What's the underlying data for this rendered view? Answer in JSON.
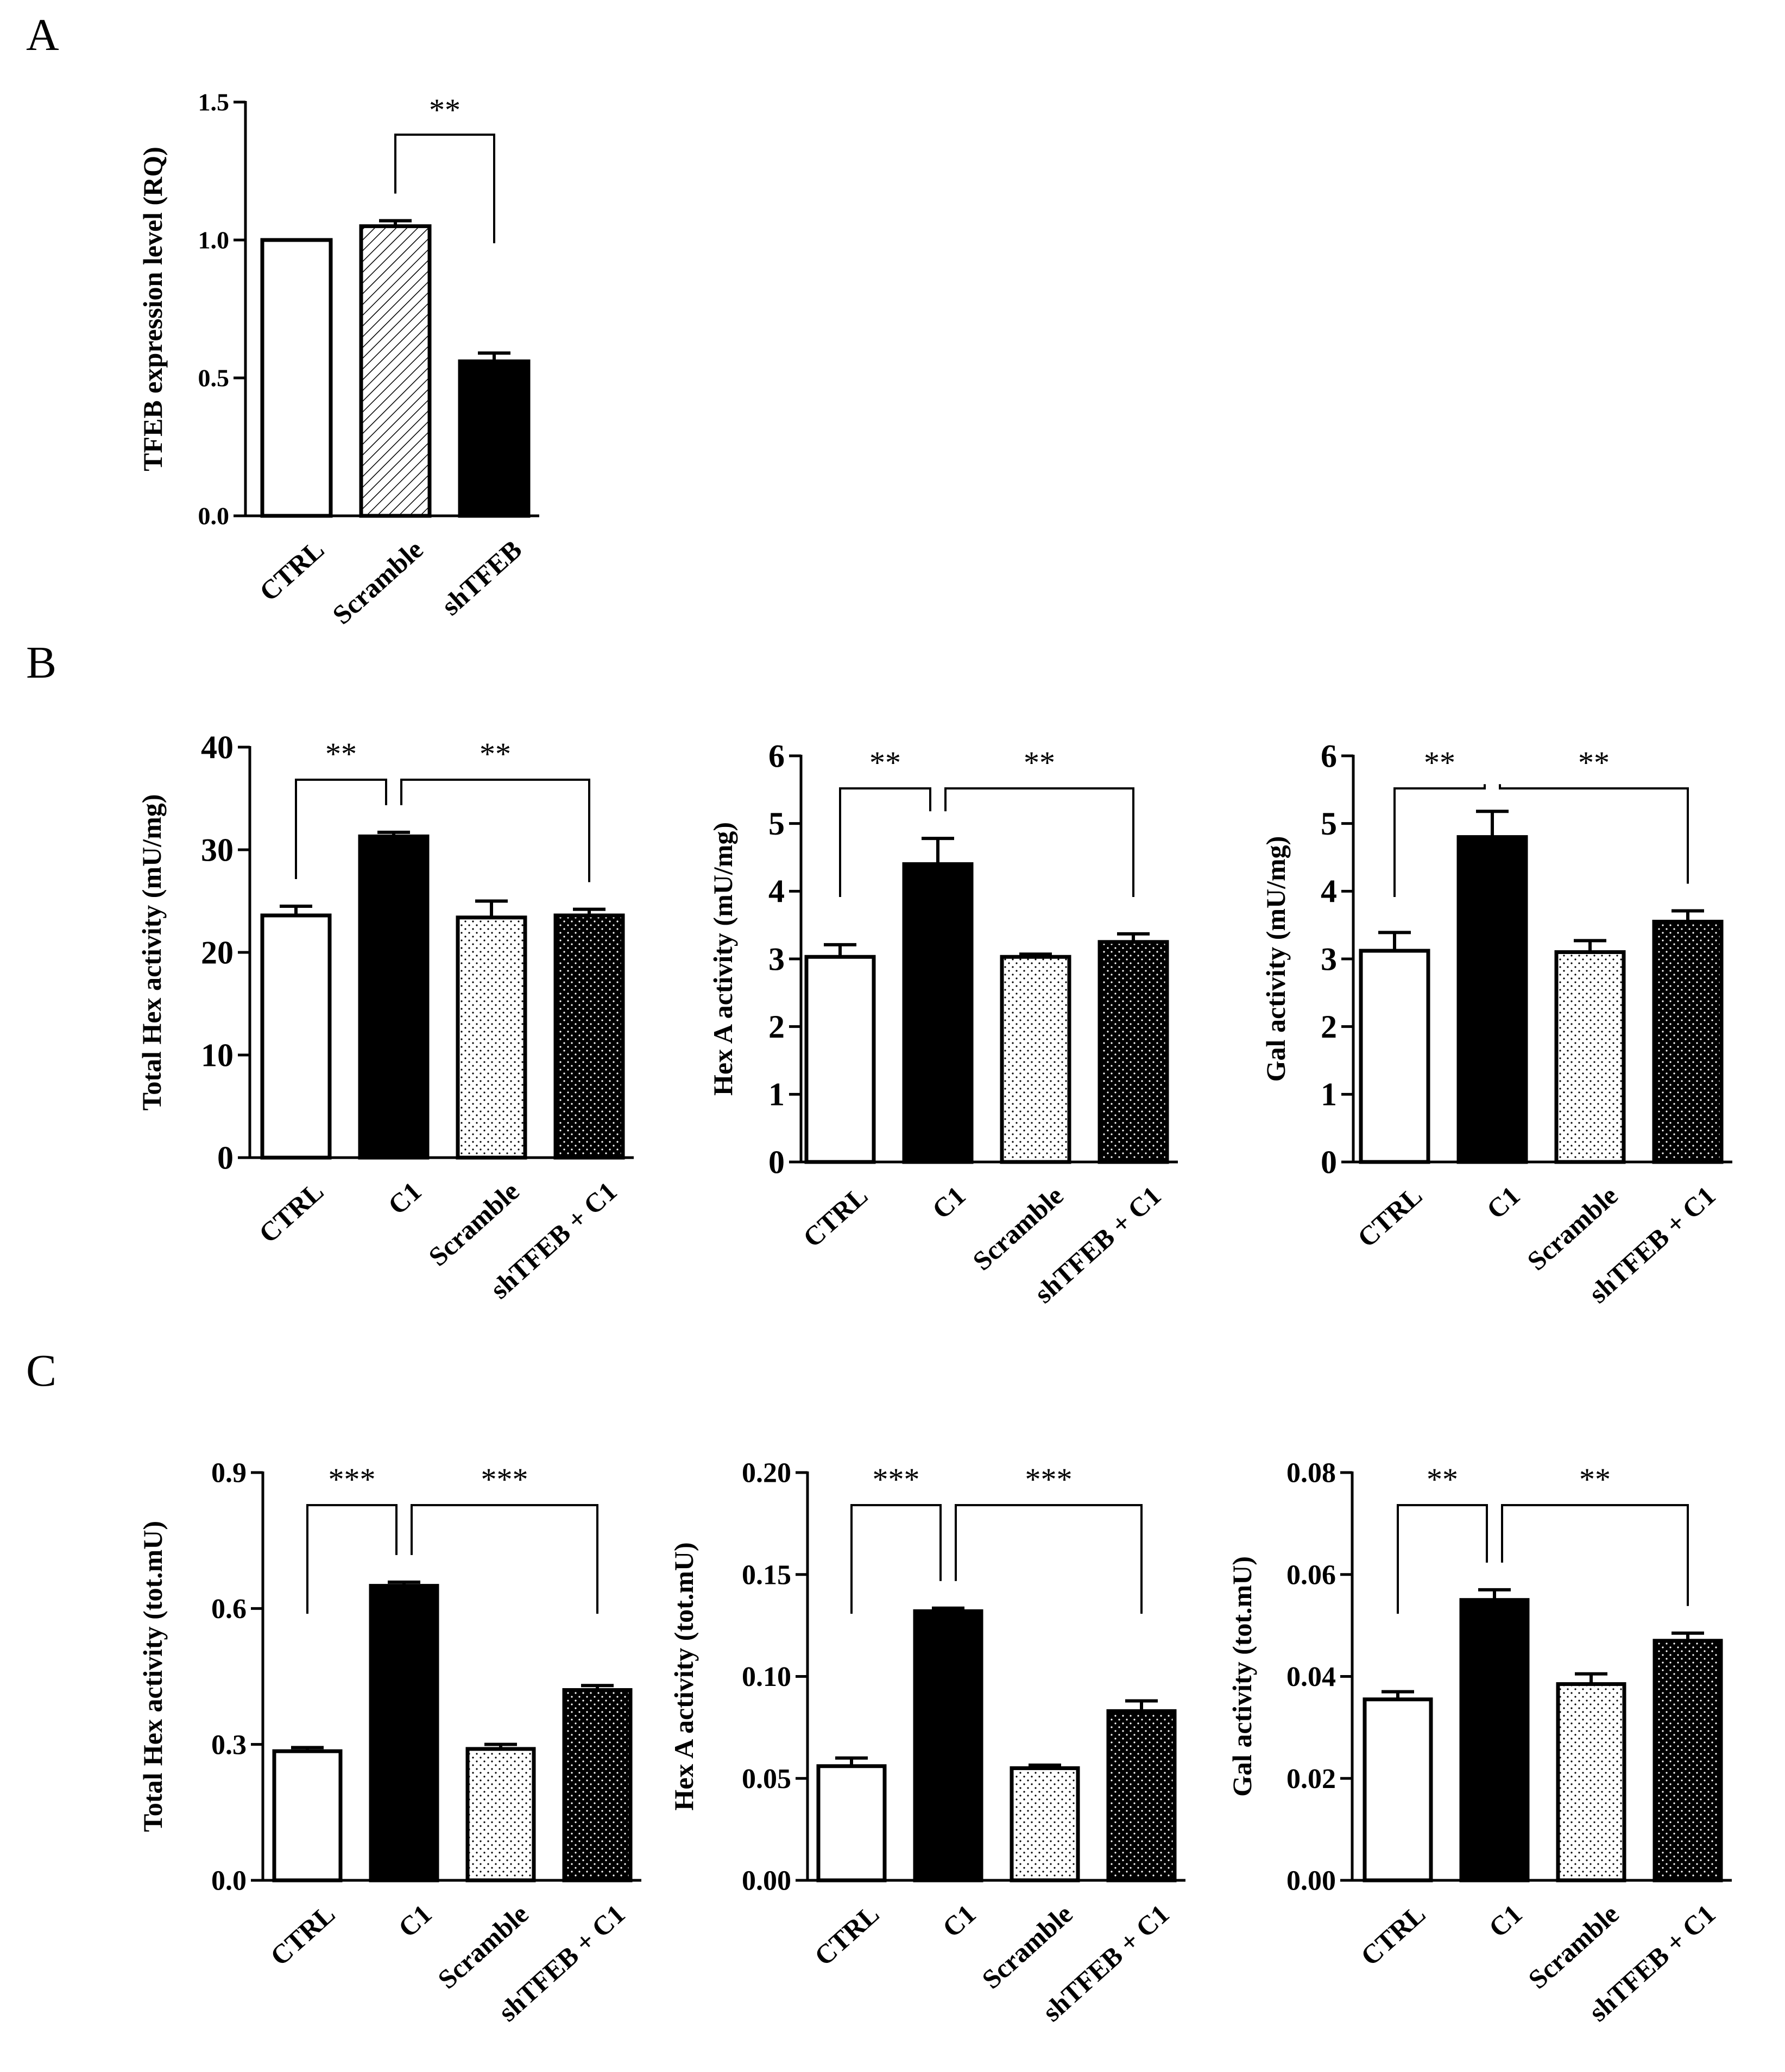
{
  "panels": [
    {
      "letter": "A"
    },
    {
      "letter": "B"
    },
    {
      "letter": "C"
    }
  ],
  "colors": {
    "ink": "#000000",
    "paper": "#ffffff"
  },
  "chart_data": [
    {
      "id": "A",
      "type": "bar",
      "categories": [
        "CTRL",
        "Scramble",
        "shTFEB"
      ],
      "values": [
        1.0,
        1.05,
        0.56
      ],
      "errors": [
        0.0,
        0.02,
        0.03
      ],
      "fills": [
        "white",
        "hatch",
        "black"
      ],
      "ylabel": "TFEB expression level (RQ)",
      "ylim": [
        0,
        1.5
      ],
      "yticks": [
        0.0,
        0.5,
        1.0,
        1.5
      ],
      "ytick_labels": [
        "0.0",
        "0.5",
        "1.0",
        "1.5"
      ],
      "significance": [
        {
          "from": 1,
          "to": 2,
          "label": "**"
        }
      ]
    },
    {
      "id": "B1",
      "type": "bar",
      "categories": [
        "CTRL",
        "C1",
        "Scramble",
        "shTFEB + C1"
      ],
      "values": [
        23.6,
        31.3,
        23.4,
        23.6
      ],
      "errors": [
        0.9,
        0.4,
        1.6,
        0.6
      ],
      "fills": [
        "white",
        "black",
        "light-dots",
        "dark-dots"
      ],
      "ylabel": "Total Hex activity (mU/mg)",
      "ylim": [
        0,
        40
      ],
      "yticks": [
        0,
        10,
        20,
        30,
        40
      ],
      "ytick_labels": [
        "0",
        "10",
        "20",
        "30",
        "40"
      ],
      "significance": [
        {
          "from": 0,
          "to": 1,
          "label": "**"
        },
        {
          "from": 1,
          "to": 3,
          "label": "**"
        }
      ]
    },
    {
      "id": "B2",
      "type": "bar",
      "categories": [
        "CTRL",
        "C1",
        "Scramble",
        "shTFEB + C1"
      ],
      "values": [
        3.03,
        4.4,
        3.03,
        3.25
      ],
      "errors": [
        0.18,
        0.38,
        0.04,
        0.12
      ],
      "fills": [
        "white",
        "black",
        "light-dots",
        "dark-dots"
      ],
      "ylabel": "Hex A activity (mU/mg)",
      "ylim": [
        0,
        6
      ],
      "yticks": [
        0,
        1,
        2,
        3,
        4,
        5,
        6
      ],
      "ytick_labels": [
        "0",
        "1",
        "2",
        "3",
        "4",
        "5",
        "6"
      ],
      "significance": [
        {
          "from": 0,
          "to": 1,
          "label": "**"
        },
        {
          "from": 1,
          "to": 3,
          "label": "**"
        }
      ]
    },
    {
      "id": "B3",
      "type": "bar",
      "categories": [
        "CTRL",
        "C1",
        "Scramble",
        "shTFEB + C1"
      ],
      "values": [
        3.12,
        4.8,
        3.1,
        3.55
      ],
      "errors": [
        0.27,
        0.38,
        0.17,
        0.16
      ],
      "fills": [
        "white",
        "black",
        "light-dots",
        "dark-dots"
      ],
      "ylabel": "Gal activity (mU/mg)",
      "ylim": [
        0,
        6
      ],
      "yticks": [
        0,
        1,
        2,
        3,
        4,
        5,
        6
      ],
      "ytick_labels": [
        "0",
        "1",
        "2",
        "3",
        "4",
        "5",
        "6"
      ],
      "significance": [
        {
          "from": 0,
          "to": 1,
          "label": "**"
        },
        {
          "from": 1,
          "to": 3,
          "label": "**"
        }
      ]
    },
    {
      "id": "C1",
      "type": "bar",
      "categories": [
        "CTRL",
        "C1",
        "Scramble",
        "shTFEB + C1"
      ],
      "values": [
        0.285,
        0.65,
        0.29,
        0.42
      ],
      "errors": [
        0.008,
        0.008,
        0.01,
        0.01
      ],
      "fills": [
        "white",
        "black",
        "light-dots",
        "dark-dots"
      ],
      "ylabel": "Total Hex activity (tot.mU)",
      "ylim": [
        0,
        0.9
      ],
      "yticks": [
        0.0,
        0.3,
        0.6,
        0.9
      ],
      "ytick_labels": [
        "0.0",
        "0.3",
        "0.6",
        "0.9"
      ],
      "significance": [
        {
          "from": 0,
          "to": 1,
          "label": "***"
        },
        {
          "from": 1,
          "to": 3,
          "label": "***"
        }
      ]
    },
    {
      "id": "C2",
      "type": "bar",
      "categories": [
        "CTRL",
        "C1",
        "Scramble",
        "shTFEB + C1"
      ],
      "values": [
        0.056,
        0.132,
        0.055,
        0.083
      ],
      "errors": [
        0.004,
        0.0015,
        0.0015,
        0.005
      ],
      "fills": [
        "white",
        "black",
        "light-dots",
        "dark-dots"
      ],
      "ylabel": "Hex A activity (tot.mU)",
      "ylim": [
        0,
        0.2
      ],
      "yticks": [
        0.0,
        0.05,
        0.1,
        0.15,
        0.2
      ],
      "ytick_labels": [
        "0.00",
        "0.05",
        "0.10",
        "0.15",
        "0.20"
      ],
      "significance": [
        {
          "from": 0,
          "to": 1,
          "label": "***"
        },
        {
          "from": 1,
          "to": 3,
          "label": "***"
        }
      ]
    },
    {
      "id": "C3",
      "type": "bar",
      "categories": [
        "CTRL",
        "C1",
        "Scramble",
        "shTFEB + C1"
      ],
      "values": [
        0.0355,
        0.055,
        0.0385,
        0.047
      ],
      "errors": [
        0.0015,
        0.002,
        0.002,
        0.0015
      ],
      "fills": [
        "white",
        "black",
        "light-dots",
        "dark-dots"
      ],
      "ylabel": "Gal activity (tot.mU)",
      "ylim": [
        0,
        0.08
      ],
      "yticks": [
        0.0,
        0.02,
        0.04,
        0.06,
        0.08
      ],
      "ytick_labels": [
        "0.00",
        "0.02",
        "0.04",
        "0.06",
        "0.08"
      ],
      "significance": [
        {
          "from": 0,
          "to": 1,
          "label": "**"
        },
        {
          "from": 1,
          "to": 3,
          "label": "**"
        }
      ]
    }
  ]
}
